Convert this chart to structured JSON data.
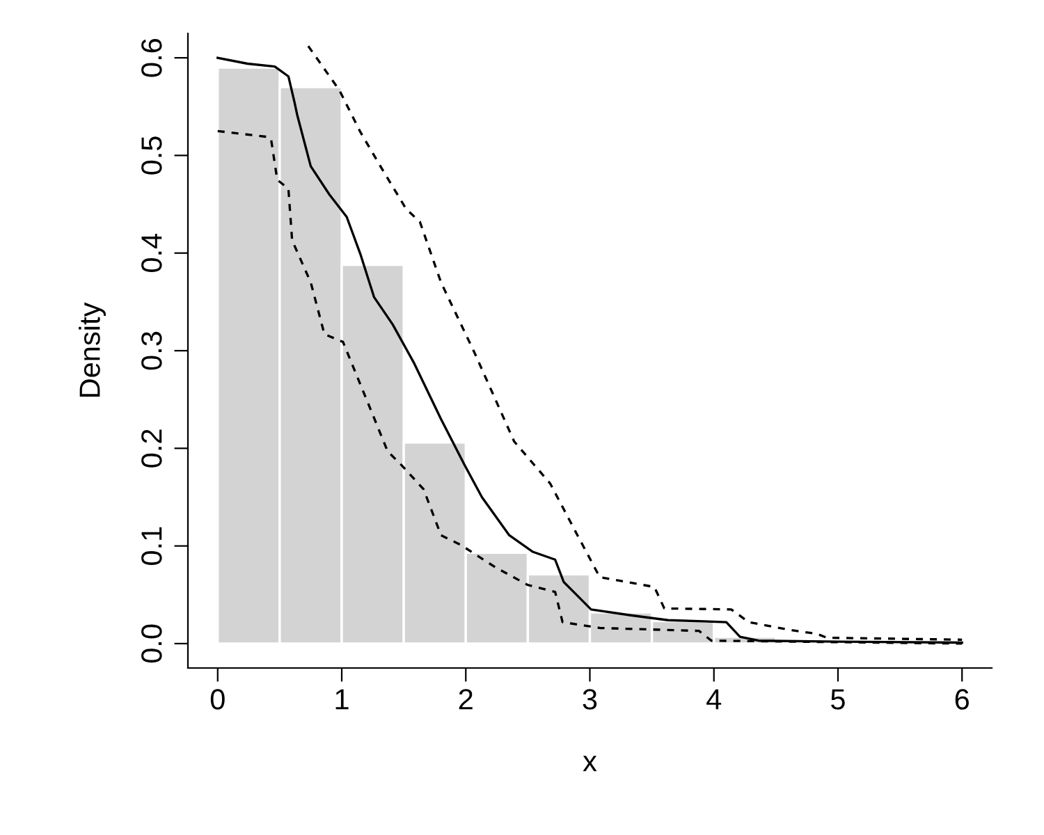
{
  "chart_data": {
    "type": "histogram",
    "xlabel": "x",
    "ylabel": "Density",
    "bins": [
      0,
      0.5,
      1,
      1.5,
      2,
      2.5,
      3,
      3.5,
      4,
      4.5
    ],
    "values": [
      0.59,
      0.57,
      0.388,
      0.206,
      0.093,
      0.071,
      0.032,
      0.023,
      0.007
    ],
    "color": "#d3d3d3",
    "series": [
      {
        "type": "line",
        "color": "#000000",
        "line_style": "solid",
        "x": [
          0,
          0.24,
          0.46,
          0.57,
          0.62,
          0.64,
          0.75,
          0.9,
          1.04,
          1.15,
          1.26,
          1.41,
          1.58,
          1.8,
          1.99,
          2.13,
          2.35,
          2.54,
          2.72,
          2.79,
          2.9,
          3.01,
          3.33,
          3.63,
          4.1,
          4.21,
          4.36,
          5,
          6
        ],
        "values": [
          0.6,
          0.594,
          0.591,
          0.581,
          0.554,
          0.542,
          0.489,
          0.46,
          0.437,
          0.399,
          0.355,
          0.327,
          0.288,
          0.23,
          0.183,
          0.15,
          0.111,
          0.094,
          0.086,
          0.063,
          0.049,
          0.035,
          0.029,
          0.024,
          0.022,
          0.007,
          0.003,
          0.002,
          0.001
        ]
      },
      {
        "type": "line",
        "color": "#000000",
        "line_style": "dashed",
        "x": [
          0,
          0.4,
          0.43,
          0.48,
          0.57,
          0.6,
          0.75,
          0.86,
          1.01,
          1.37,
          1.48,
          1.66,
          1.8,
          1.96,
          2.24,
          2.5,
          2.72,
          2.78,
          3.08,
          3.88,
          3.98,
          6
        ],
        "values": [
          0.525,
          0.519,
          0.517,
          0.475,
          0.466,
          0.413,
          0.37,
          0.317,
          0.309,
          0.197,
          0.183,
          0.158,
          0.111,
          0.101,
          0.078,
          0.06,
          0.053,
          0.022,
          0.016,
          0.013,
          0.003,
          0.0
        ]
      },
      {
        "type": "line",
        "color": "#000000",
        "line_style": "dashed",
        "x": [
          0.73,
          0.98,
          1.15,
          1.33,
          1.52,
          1.63,
          1.8,
          2.07,
          2.39,
          2.68,
          2.9,
          3.08,
          3.52,
          3.6,
          4.14,
          4.28,
          4.61,
          4.83,
          4.91,
          6
        ],
        "values": [
          0.612,
          0.567,
          0.524,
          0.485,
          0.445,
          0.432,
          0.37,
          0.298,
          0.207,
          0.164,
          0.111,
          0.068,
          0.058,
          0.036,
          0.035,
          0.022,
          0.014,
          0.01,
          0.006,
          0.004
        ]
      }
    ],
    "xlim": [
      -0.24,
      6.24
    ],
    "ylim": [
      -0.025,
      0.625
    ],
    "xticks": [
      0,
      1,
      2,
      3,
      4,
      5,
      6
    ],
    "yticks": [
      {
        "value": 0,
        "label": "0.0"
      },
      {
        "value": 0.1,
        "label": "0.1"
      },
      {
        "value": 0.2,
        "label": "0.2"
      },
      {
        "value": 0.3,
        "label": "0.3"
      },
      {
        "value": 0.4,
        "label": "0.4"
      },
      {
        "value": 0.5,
        "label": "0.5"
      },
      {
        "value": 0.6,
        "label": "0.6"
      }
    ],
    "grid": false,
    "legend": false
  }
}
